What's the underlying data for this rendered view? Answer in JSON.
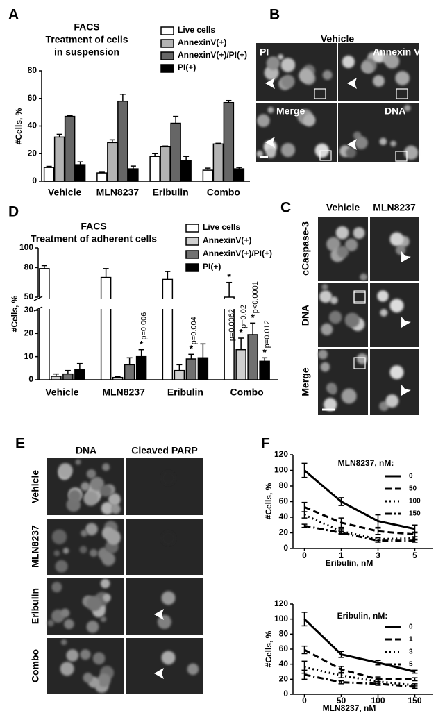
{
  "chart_data": [
    {
      "panel": "A",
      "type": "bar",
      "title": "FACS",
      "subtitle": [
        "Treatment of cells",
        "in suspension"
      ],
      "ylabel": "#Cells, %",
      "categories": [
        "Vehicle",
        "MLN8237",
        "Eribulin",
        "Combo"
      ],
      "ylim": [
        0,
        80
      ],
      "yticks": [
        0,
        20,
        40,
        60,
        80
      ],
      "series": [
        {
          "name": "Live cells",
          "color": "#ffffff",
          "values": [
            10,
            6,
            18,
            8
          ],
          "errors": [
            0.8,
            0.5,
            2,
            1.5
          ]
        },
        {
          "name": "AnnexinV(+)",
          "color": "#b3b3b3",
          "values": [
            32,
            28,
            25,
            27
          ],
          "errors": [
            2,
            2,
            0.5,
            0.5
          ]
        },
        {
          "name": "AnnexinV(+)/PI(+)",
          "color": "#666666",
          "values": [
            47,
            58,
            42,
            57
          ],
          "errors": [
            0.5,
            5,
            5,
            1.5
          ]
        },
        {
          "name": "PI(+)",
          "color": "#000000",
          "values": [
            12,
            9,
            15,
            9
          ],
          "errors": [
            2,
            2,
            3,
            1
          ]
        }
      ]
    },
    {
      "panel": "D",
      "type": "bar",
      "title": "FACS",
      "subtitle": [
        "Treatment of adherent cells"
      ],
      "ylabel": "#Cells, %",
      "categories": [
        "Vehicle",
        "MLN8237",
        "Eribulin",
        "Combo"
      ],
      "ylim": [
        0,
        30
      ],
      "yticks": [
        0,
        10,
        20,
        30
      ],
      "ylim_upper": [
        50,
        100
      ],
      "yticks_upper": [
        50,
        80,
        100
      ],
      "series": [
        {
          "name": "Live cells",
          "color": "#ffffff",
          "values": [
            79,
            70,
            68,
            50
          ],
          "errors": [
            3,
            9,
            8,
            15
          ],
          "stars": [
            null,
            null,
            null,
            "*"
          ],
          "p_labels": [
            null,
            null,
            null,
            "p=0.0062"
          ]
        },
        {
          "name": "AnnexinV(+)",
          "color": "#cfcfcf",
          "values": [
            1.5,
            1,
            4,
            13
          ],
          "errors": [
            1,
            0.3,
            2.5,
            5
          ],
          "stars": [
            null,
            null,
            null,
            "*"
          ],
          "p_labels": [
            null,
            null,
            null,
            "p=0.02"
          ]
        },
        {
          "name": "AnnexinV(+)/PI(+)",
          "color": "#707070",
          "values": [
            2.5,
            6.5,
            9,
            19.5
          ],
          "errors": [
            1.5,
            3,
            2,
            5
          ],
          "stars": [
            null,
            null,
            "*",
            "*"
          ],
          "p_labels": [
            null,
            null,
            "p=0.004",
            "p<0.0001"
          ]
        },
        {
          "name": "PI(+)",
          "color": "#000000",
          "values": [
            4.5,
            10,
            9.5,
            8
          ],
          "errors": [
            2.5,
            3,
            6,
            1.5
          ],
          "stars": [
            null,
            "*",
            null,
            "*"
          ],
          "p_labels": [
            null,
            "p=0.006",
            null,
            "p=0.012"
          ]
        }
      ]
    },
    {
      "panel": "F",
      "type": "line",
      "title": "MLN8237, nM:",
      "xlabel": "Eribulin, nM",
      "ylabel": "#Cells, %",
      "categories": [
        "0",
        "1",
        "3",
        "5"
      ],
      "ylim": [
        0,
        120
      ],
      "yticks": [
        0,
        20,
        40,
        60,
        80,
        100,
        120
      ],
      "series": [
        {
          "name": "0",
          "color": "#000000",
          "linestyle": "solid",
          "values": [
            100,
            60,
            35,
            25
          ],
          "errors": [
            9,
            5,
            8,
            5
          ]
        },
        {
          "name": "50",
          "color": "#000000",
          "linestyle": "dashed",
          "values": [
            53,
            33,
            22,
            18
          ],
          "errors": [
            6,
            6,
            4,
            3
          ]
        },
        {
          "name": "100",
          "color": "#000000",
          "linestyle": "dotted",
          "values": [
            43,
            22,
            12,
            13
          ],
          "errors": [
            4,
            3,
            2,
            2
          ]
        },
        {
          "name": "150",
          "color": "#000000",
          "linestyle": "dashdot",
          "values": [
            29,
            20,
            10,
            10
          ],
          "errors": [
            2,
            2,
            2,
            2
          ]
        }
      ]
    },
    {
      "type": "line",
      "title": "Eribulin, nM:",
      "xlabel": "MLN8237, nM",
      "ylabel": "#Cells, %",
      "categories": [
        "0",
        "50",
        "100",
        "150"
      ],
      "ylim": [
        0,
        120
      ],
      "yticks": [
        0,
        20,
        40,
        60,
        80,
        100,
        120
      ],
      "series": [
        {
          "name": "0",
          "color": "#000000",
          "linestyle": "solid",
          "values": [
            100,
            53,
            42,
            30
          ],
          "errors": [
            9,
            4,
            3,
            2
          ]
        },
        {
          "name": "1",
          "color": "#000000",
          "linestyle": "dashed",
          "values": [
            59,
            33,
            20,
            20
          ],
          "errors": [
            5,
            4,
            3,
            2
          ]
        },
        {
          "name": "3",
          "color": "#000000",
          "linestyle": "dotted",
          "values": [
            36,
            25,
            17,
            12
          ],
          "errors": [
            8,
            3,
            3,
            2
          ]
        },
        {
          "name": "5",
          "color": "#000000",
          "linestyle": "dashdot",
          "values": [
            26,
            16,
            14,
            10
          ],
          "errors": [
            6,
            2,
            2,
            2
          ]
        }
      ]
    }
  ],
  "images": [
    {
      "panel": "B",
      "title": "Vehicle",
      "labels": [
        "PI",
        "Annexin V",
        "Merge",
        "DNA"
      ]
    },
    {
      "panel": "C",
      "columns": [
        "Vehicle",
        "MLN8237"
      ],
      "rows": [
        "cCaspase-3",
        "DNA",
        "Merge"
      ]
    },
    {
      "panel": "E",
      "columns": [
        "DNA",
        "Cleaved PARP"
      ],
      "rows": [
        "Vehicle",
        "MLN8237",
        "Eribulin",
        "Combo"
      ]
    }
  ]
}
